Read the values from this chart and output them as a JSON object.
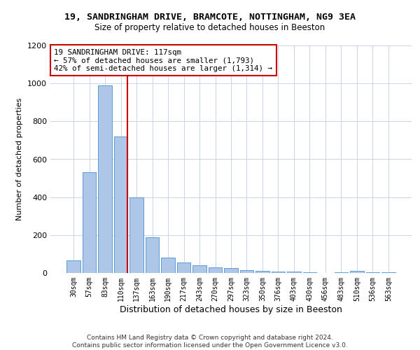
{
  "title_line1": "19, SANDRINGHAM DRIVE, BRAMCOTE, NOTTINGHAM, NG9 3EA",
  "title_line2": "Size of property relative to detached houses in Beeston",
  "xlabel": "Distribution of detached houses by size in Beeston",
  "ylabel": "Number of detached properties",
  "bar_labels": [
    "30sqm",
    "57sqm",
    "83sqm",
    "110sqm",
    "137sqm",
    "163sqm",
    "190sqm",
    "217sqm",
    "243sqm",
    "270sqm",
    "297sqm",
    "323sqm",
    "350sqm",
    "376sqm",
    "403sqm",
    "430sqm",
    "456sqm",
    "483sqm",
    "510sqm",
    "536sqm",
    "563sqm"
  ],
  "bar_values": [
    65,
    530,
    990,
    720,
    400,
    190,
    80,
    55,
    40,
    30,
    25,
    15,
    12,
    8,
    6,
    5,
    0,
    5,
    10,
    5,
    5
  ],
  "bar_color": "#aec6e8",
  "bar_edge_color": "#5b9bd5",
  "annotation_text": "19 SANDRINGHAM DRIVE: 117sqm\n← 57% of detached houses are smaller (1,793)\n42% of semi-detached houses are larger (1,314) →",
  "annotation_box_color": "#ffffff",
  "annotation_box_edge_color": "#cc0000",
  "vline_color": "#cc0000",
  "background_color": "#ffffff",
  "footer_text": "Contains HM Land Registry data © Crown copyright and database right 2024.\nContains public sector information licensed under the Open Government Licence v3.0.",
  "ylim": [
    0,
    1200
  ],
  "yticks": [
    0,
    200,
    400,
    600,
    800,
    1000,
    1200
  ],
  "vline_x": 3.43
}
